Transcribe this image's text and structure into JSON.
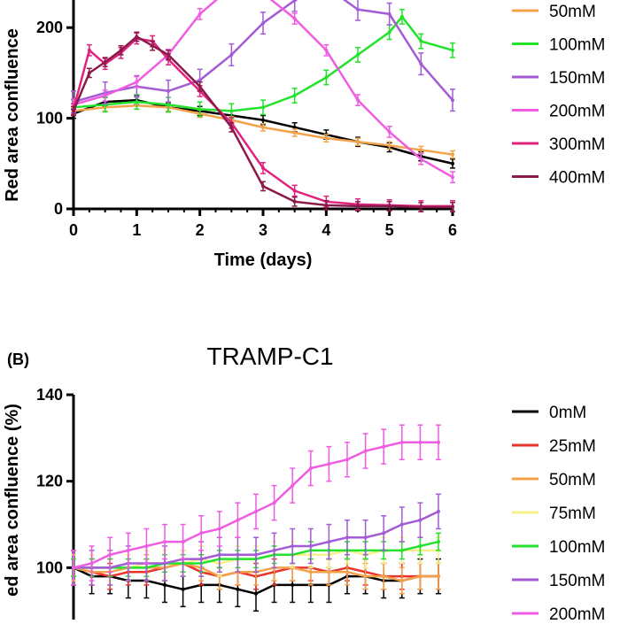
{
  "figure": {
    "panels": [
      {
        "id": "A",
        "label": "",
        "title": ""
      },
      {
        "id": "B",
        "label": "(B)",
        "title": "TRAMP-C1"
      }
    ]
  },
  "chart_data": [
    {
      "type": "line",
      "panel": "A",
      "title": "",
      "xlabel": "Time (days)",
      "ylabel": "Red area confluence",
      "xlim": [
        0,
        6
      ],
      "ylim": [
        0,
        250
      ],
      "xticks": [
        0,
        1,
        2,
        3,
        4,
        5,
        6
      ],
      "yticks": [
        0,
        100,
        200
      ],
      "grid": false,
      "legend": "right",
      "series": [
        {
          "name": "",
          "color": "#000000",
          "legend": false,
          "x": [
            0,
            0.5,
            1,
            1.5,
            2,
            2.5,
            3,
            3.5,
            4,
            4.5,
            5,
            5.5,
            6
          ],
          "y": [
            105,
            118,
            120,
            112,
            108,
            103,
            98,
            90,
            82,
            74,
            68,
            58,
            50
          ],
          "err": 5
        },
        {
          "name": "50mM",
          "color": "#f4a24a",
          "x": [
            0,
            0.5,
            1,
            1.5,
            2,
            2.5,
            3,
            3.5,
            4,
            4.5,
            5,
            5.5,
            6
          ],
          "y": [
            108,
            112,
            114,
            112,
            105,
            98,
            90,
            84,
            78,
            74,
            70,
            65,
            60
          ],
          "err": 4
        },
        {
          "name": "100mM",
          "color": "#22e22c",
          "x": [
            0,
            0.5,
            1,
            1.5,
            2,
            2.5,
            3,
            3.5,
            4,
            4.5,
            5,
            5.2,
            5.5,
            6
          ],
          "y": [
            112,
            115,
            118,
            115,
            110,
            108,
            112,
            125,
            145,
            170,
            195,
            212,
            185,
            175
          ],
          "err": 8
        },
        {
          "name": "150mM",
          "color": "#a35bd6",
          "x": [
            0,
            0.5,
            1,
            1.5,
            2,
            2.5,
            3,
            3.5,
            4,
            4.5,
            5,
            5.5,
            6
          ],
          "y": [
            118,
            128,
            135,
            130,
            142,
            170,
            205,
            230,
            245,
            220,
            215,
            160,
            120
          ],
          "err": 12
        },
        {
          "name": "200mM",
          "color": "#ef5ce2",
          "x": [
            0,
            0.5,
            1,
            1.5,
            2,
            2.5,
            3,
            3.5,
            4,
            4.5,
            5,
            5.5,
            6
          ],
          "y": [
            115,
            125,
            140,
            170,
            215,
            245,
            238,
            210,
            175,
            120,
            85,
            55,
            35
          ],
          "err": 6
        },
        {
          "name": "300mM",
          "color": "#e0237f",
          "x": [
            0,
            0.25,
            0.5,
            0.75,
            1,
            1.25,
            1.5,
            2,
            2.5,
            3,
            3.5,
            4,
            4.5,
            5,
            5.5,
            6
          ],
          "y": [
            110,
            175,
            160,
            172,
            188,
            185,
            165,
            130,
            95,
            45,
            20,
            8,
            5,
            4,
            3,
            3
          ],
          "err": 6
        },
        {
          "name": "400mM",
          "color": "#8b1a4a",
          "x": [
            0,
            0.25,
            0.5,
            0.75,
            1,
            1.25,
            1.5,
            2,
            2.5,
            3,
            3.5,
            4,
            4.5,
            5,
            5.5,
            6
          ],
          "y": [
            108,
            150,
            162,
            175,
            190,
            180,
            170,
            135,
            90,
            25,
            8,
            4,
            3,
            3,
            2,
            2
          ],
          "err": 5
        }
      ]
    },
    {
      "type": "line",
      "panel": "B",
      "title": "TRAMP-C1",
      "xlabel": "",
      "ylabel": "ed area confluence (%)",
      "ylim": [
        88,
        140
      ],
      "yticks": [
        100,
        120,
        140
      ],
      "grid": false,
      "legend": "right",
      "x": [
        0,
        0.3,
        0.6,
        0.9,
        1.2,
        1.5,
        1.8,
        2.1,
        2.4,
        2.7,
        3.0,
        3.3,
        3.6,
        3.9,
        4.2,
        4.5,
        4.8,
        5.1,
        5.4,
        5.7,
        6.0
      ],
      "series": [
        {
          "name": "0mM",
          "color": "#000000",
          "err": 4,
          "values": [
            100,
            98,
            98,
            97,
            97,
            96,
            95,
            96,
            96,
            95,
            94,
            96,
            96,
            96,
            96,
            98,
            98,
            97,
            97,
            98,
            98
          ]
        },
        {
          "name": "25mM",
          "color": "#e8342a",
          "err": 3,
          "values": [
            100,
            99,
            98,
            99,
            99,
            100,
            101,
            99,
            98,
            99,
            98,
            99,
            100,
            100,
            99,
            100,
            99,
            98,
            98,
            98,
            98
          ]
        },
        {
          "name": "50mM",
          "color": "#f4a24a",
          "err": 3,
          "values": [
            100,
            99,
            99,
            100,
            100,
            100,
            101,
            100,
            98,
            99,
            99,
            100,
            100,
            99,
            99,
            99,
            98,
            98,
            97,
            98,
            98
          ]
        },
        {
          "name": "75mM",
          "color": "#f7f08a",
          "err": 3,
          "values": [
            100,
            100,
            100,
            100,
            101,
            101,
            101,
            102,
            101,
            102,
            102,
            103,
            103,
            103,
            103,
            104,
            103,
            104,
            104,
            104,
            104
          ]
        },
        {
          "name": "100mM",
          "color": "#22e22c",
          "err": 2,
          "values": [
            100,
            100,
            100,
            100,
            100,
            101,
            101,
            101,
            102,
            102,
            102,
            103,
            103,
            104,
            104,
            104,
            104,
            104,
            104,
            105,
            106
          ]
        },
        {
          "name": "150mM",
          "color": "#a35bd6",
          "err": 4,
          "values": [
            100,
            100,
            100,
            101,
            101,
            101,
            102,
            102,
            103,
            103,
            103,
            104,
            105,
            105,
            106,
            107,
            107,
            108,
            110,
            111,
            113
          ]
        },
        {
          "name": "200mM",
          "color": "#ef5ce2",
          "err": 4,
          "values": [
            100,
            101,
            103,
            104,
            105,
            106,
            106,
            108,
            109,
            111,
            113,
            115,
            119,
            123,
            124,
            125,
            127,
            128,
            129,
            129,
            129
          ]
        }
      ]
    }
  ]
}
